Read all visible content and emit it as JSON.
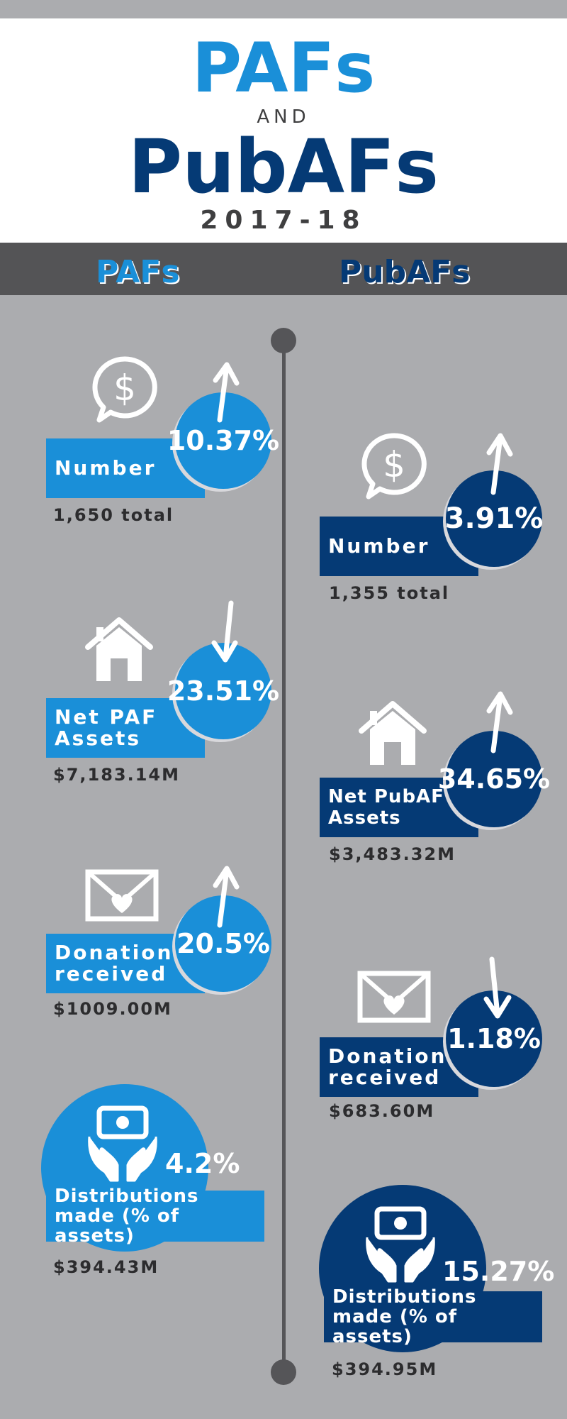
{
  "header": {
    "title_paf": "PAFs",
    "title_and": "AND",
    "title_pubaf": "PubAFs",
    "year": "2017-18"
  },
  "columns": {
    "left_title": "PAFs",
    "right_title": "PubAFs"
  },
  "colors": {
    "paf_blue": "#1a8fd8",
    "pubaf_navy": "#053a75",
    "background_gray": "#abacaf",
    "band_gray": "#545456"
  },
  "paf": {
    "number": {
      "icon": "dollar-speech-bubble-icon",
      "direction": "up",
      "percent": "10.37%",
      "label": "Number",
      "sub": "1,650 total"
    },
    "assets": {
      "icon": "house-icon",
      "direction": "down",
      "percent": "23.51%",
      "label_line1": "Net PAF",
      "label_line2": "Assets",
      "sub": "$7,183.14M"
    },
    "donations": {
      "icon": "heart-envelope-icon",
      "direction": "up",
      "percent": "20.5%",
      "label_line1": "Donations",
      "label_line2": "received",
      "sub": "$1009.00M"
    },
    "distributions": {
      "icon": "money-hands-icon",
      "percent": "4.2%",
      "label_line1": "Distributions",
      "label_line2": "made (% of assets)",
      "sub": "$394.43M"
    }
  },
  "pubaf": {
    "number": {
      "icon": "dollar-speech-bubble-icon",
      "direction": "up",
      "percent": "3.91%",
      "label": "Number",
      "sub": "1,355 total"
    },
    "assets": {
      "icon": "house-icon",
      "direction": "up",
      "percent": "34.65%",
      "label_line1": "Net PubAF",
      "label_line2": "Assets",
      "sub": "$3,483.32M"
    },
    "donations": {
      "icon": "heart-envelope-icon",
      "direction": "down",
      "percent": "1.18%",
      "label_line1": "Donations",
      "label_line2": "received",
      "sub": "$683.60M"
    },
    "distributions": {
      "icon": "money-hands-icon",
      "percent": "15.27%",
      "label_line1": "Distributions",
      "label_line2": "made (% of assets)",
      "sub": "$394.95M"
    }
  }
}
